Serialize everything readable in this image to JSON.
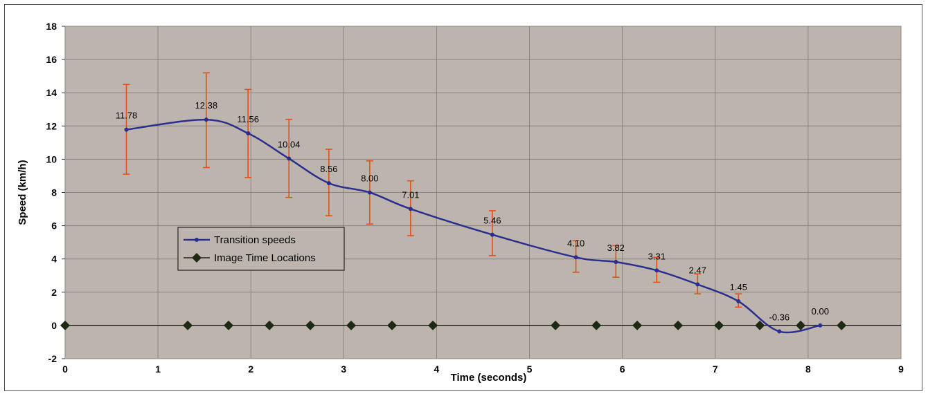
{
  "chart_data": {
    "type": "line",
    "xlabel": "Time (seconds)",
    "ylabel": "Speed (km/h)",
    "xlim": [
      0,
      9
    ],
    "ylim": [
      -2,
      18
    ],
    "xticks": [
      0,
      1,
      2,
      3,
      4,
      5,
      6,
      7,
      8,
      9
    ],
    "yticks": [
      -2,
      0,
      2,
      4,
      6,
      8,
      10,
      12,
      14,
      16,
      18
    ],
    "grid": true,
    "legend_position": "middle-left",
    "colors": {
      "plot_background": "#bdb5ad",
      "grid": "#8a8580",
      "line": "#2a2f8f",
      "error_bars": "#e0501a",
      "markers": "#1f2a14"
    },
    "series": [
      {
        "name": "Transition speeds",
        "x": [
          0.66,
          1.52,
          1.97,
          2.41,
          2.84,
          3.28,
          3.72,
          4.6,
          5.5,
          5.93,
          6.37,
          6.81,
          7.25,
          7.69,
          8.13
        ],
        "y": [
          11.78,
          12.38,
          11.56,
          10.04,
          8.56,
          8.0,
          7.01,
          5.46,
          4.1,
          3.82,
          3.31,
          2.47,
          1.45,
          -0.36,
          0.0
        ],
        "labels": [
          "11.78",
          "12.38",
          "11.56",
          "10.04",
          "8.56",
          "8.00",
          "7.01",
          "5.46",
          "4.10",
          "3.82",
          "3.31",
          "2.47",
          "1.45",
          "-0.36",
          "0.00"
        ],
        "error_low": [
          9.1,
          9.5,
          8.9,
          7.7,
          6.6,
          6.1,
          5.4,
          4.2,
          3.2,
          2.9,
          2.6,
          1.9,
          1.1,
          -0.4,
          0.0
        ],
        "error_high": [
          14.5,
          15.2,
          14.2,
          12.4,
          10.6,
          9.9,
          8.7,
          6.9,
          5.1,
          4.8,
          4.1,
          3.1,
          1.9,
          -0.3,
          0.0
        ]
      },
      {
        "name": "Image Time Locations",
        "x": [
          0.0,
          1.32,
          1.76,
          2.2,
          2.64,
          3.08,
          3.52,
          3.96,
          5.28,
          5.72,
          6.16,
          6.6,
          7.04,
          7.48,
          7.92,
          8.36
        ],
        "y": [
          0,
          0,
          0,
          0,
          0,
          0,
          0,
          0,
          0,
          0,
          0,
          0,
          0,
          0,
          0,
          0
        ]
      }
    ]
  }
}
